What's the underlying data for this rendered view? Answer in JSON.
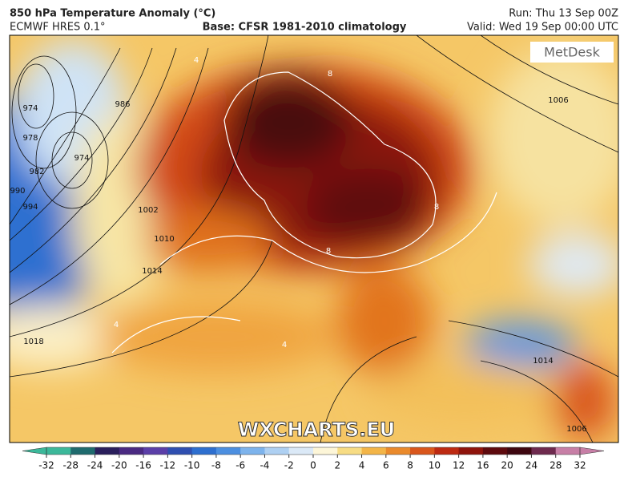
{
  "header": {
    "title": "850 hPa Temperature Anomaly (°C)",
    "model": "ECMWF HRES 0.1°",
    "base": "Base: CFSR 1981-2010 climatology",
    "run": "Run: Thu 13 Sep 00Z",
    "valid": "Valid: Wed 19 Sep 00:00 UTC"
  },
  "logo": "MetDesk",
  "watermark": "WXCHARTS.EU",
  "isobar_labels": [
    "974",
    "978",
    "982",
    "986",
    "990",
    "994",
    "974",
    "1002",
    "1006",
    "1010",
    "1014",
    "1018",
    "1014",
    "1006"
  ],
  "anomaly_labels": [
    "8",
    "8",
    "4",
    "4",
    "4",
    "8"
  ],
  "colorbar": {
    "ticks": [
      -32,
      -28,
      -24,
      -20,
      -16,
      -12,
      -10,
      -8,
      -6,
      -4,
      -2,
      0,
      2,
      4,
      6,
      8,
      10,
      12,
      16,
      20,
      24,
      28,
      32
    ],
    "colors": [
      "#3cb89a",
      "#1f6b6e",
      "#2a1f5c",
      "#4a2a82",
      "#5b3fa8",
      "#2f4fb0",
      "#2e6fcf",
      "#4c8fe0",
      "#7db3ec",
      "#aed0f2",
      "#dbe9f7",
      "#fdf6d8",
      "#f7dc84",
      "#f3b548",
      "#ea8a2c",
      "#d9561c",
      "#bd2a12",
      "#8f140c",
      "#5e0a0e",
      "#3e0710",
      "#6e2a4e",
      "#c77fa6"
    ]
  }
}
